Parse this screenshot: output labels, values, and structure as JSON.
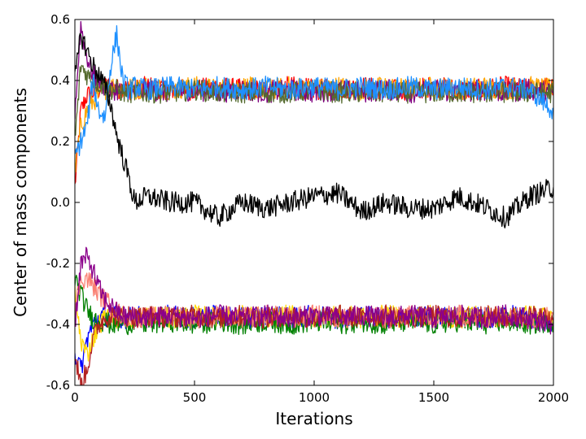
{
  "chart_data": {
    "type": "line",
    "title": "",
    "xlabel": "Iterations",
    "ylabel": "Center of mass components",
    "xlim": [
      0,
      2000
    ],
    "ylim": [
      -0.6,
      0.6
    ],
    "xticks": [
      0,
      500,
      1000,
      1500,
      2000
    ],
    "xtick_labels": [
      "0",
      "500",
      "1000",
      "1500",
      "2000"
    ],
    "yticks": [
      -0.6,
      -0.4,
      -0.2,
      0.0,
      0.2,
      0.4,
      0.6
    ],
    "ytick_labels": [
      "-0.6",
      "-0.4",
      "-0.2",
      "0.0",
      "0.2",
      "0.4",
      "0.6"
    ],
    "grid": false,
    "legend": "none",
    "x": [
      0,
      25,
      50,
      75,
      100,
      125,
      150,
      175,
      200,
      225,
      250,
      300,
      400,
      500,
      600,
      700,
      800,
      900,
      1000,
      1100,
      1200,
      1300,
      1400,
      1500,
      1600,
      1700,
      1800,
      1900,
      2000
    ],
    "series": [
      {
        "color": "#ff0000",
        "values": [
          0.05,
          0.3,
          0.35,
          0.36,
          0.37,
          0.38,
          0.38,
          0.37,
          0.38,
          0.37,
          0.37,
          0.38,
          0.37,
          0.37,
          0.38,
          0.37,
          0.37,
          0.38,
          0.37,
          0.37,
          0.38,
          0.37,
          0.37,
          0.38,
          0.37,
          0.37,
          0.38,
          0.37,
          0.38
        ]
      },
      {
        "color": "#ffa500",
        "values": [
          0.1,
          0.25,
          0.3,
          0.33,
          0.35,
          0.37,
          0.38,
          0.38,
          0.37,
          0.38,
          0.37,
          0.38,
          0.37,
          0.38,
          0.37,
          0.38,
          0.37,
          0.38,
          0.37,
          0.38,
          0.37,
          0.38,
          0.37,
          0.38,
          0.37,
          0.38,
          0.37,
          0.38,
          0.37
        ]
      },
      {
        "color": "#800080",
        "values": [
          0.3,
          0.58,
          0.48,
          0.42,
          0.4,
          0.38,
          0.37,
          0.37,
          0.36,
          0.37,
          0.36,
          0.37,
          0.36,
          0.37,
          0.36,
          0.37,
          0.36,
          0.37,
          0.36,
          0.37,
          0.36,
          0.37,
          0.36,
          0.37,
          0.36,
          0.37,
          0.36,
          0.37,
          0.36
        ]
      },
      {
        "color": "#556b2f",
        "values": [
          0.2,
          0.45,
          0.42,
          0.4,
          0.39,
          0.38,
          0.37,
          0.37,
          0.36,
          0.36,
          0.36,
          0.36,
          0.36,
          0.37,
          0.36,
          0.36,
          0.36,
          0.36,
          0.37,
          0.36,
          0.36,
          0.36,
          0.36,
          0.36,
          0.36,
          0.36,
          0.36,
          0.36,
          0.36
        ]
      },
      {
        "color": "#1e90ff",
        "values": [
          0.15,
          0.2,
          0.25,
          0.4,
          0.3,
          0.28,
          0.45,
          0.55,
          0.4,
          0.37,
          0.38,
          0.37,
          0.38,
          0.37,
          0.38,
          0.37,
          0.38,
          0.37,
          0.38,
          0.37,
          0.38,
          0.37,
          0.38,
          0.37,
          0.38,
          0.37,
          0.38,
          0.37,
          0.3
        ]
      },
      {
        "color": "#000000",
        "values": [
          0.4,
          0.55,
          0.5,
          0.45,
          0.42,
          0.38,
          0.32,
          0.22,
          0.15,
          0.08,
          0.0,
          0.02,
          0.0,
          0.0,
          -0.05,
          0.0,
          -0.02,
          0.0,
          0.02,
          0.03,
          -0.03,
          0.0,
          -0.02,
          -0.02,
          0.02,
          -0.01,
          -0.05,
          0.02,
          0.05
        ]
      },
      {
        "color": "#0000ff",
        "values": [
          -0.5,
          -0.55,
          -0.45,
          -0.4,
          -0.38,
          -0.37,
          -0.38,
          -0.37,
          -0.38,
          -0.38,
          -0.37,
          -0.38,
          -0.37,
          -0.38,
          -0.37,
          -0.38,
          -0.37,
          -0.38,
          -0.37,
          -0.38,
          -0.37,
          -0.38,
          -0.37,
          -0.38,
          -0.37,
          -0.38,
          -0.37,
          -0.38,
          -0.4
        ]
      },
      {
        "color": "#ffd700",
        "values": [
          -0.3,
          -0.45,
          -0.5,
          -0.45,
          -0.4,
          -0.38,
          -0.37,
          -0.38,
          -0.37,
          -0.38,
          -0.38,
          -0.37,
          -0.38,
          -0.37,
          -0.38,
          -0.37,
          -0.38,
          -0.37,
          -0.38,
          -0.37,
          -0.38,
          -0.37,
          -0.38,
          -0.37,
          -0.38,
          -0.37,
          -0.38,
          -0.37,
          -0.38
        ]
      },
      {
        "color": "#008000",
        "values": [
          -0.25,
          -0.3,
          -0.35,
          -0.38,
          -0.39,
          -0.39,
          -0.4,
          -0.4,
          -0.39,
          -0.4,
          -0.39,
          -0.4,
          -0.39,
          -0.4,
          -0.39,
          -0.4,
          -0.39,
          -0.4,
          -0.39,
          -0.4,
          -0.39,
          -0.4,
          -0.39,
          -0.4,
          -0.39,
          -0.4,
          -0.39,
          -0.4,
          -0.39
        ]
      },
      {
        "color": "#fa8072",
        "values": [
          -0.35,
          -0.25,
          -0.25,
          -0.27,
          -0.3,
          -0.32,
          -0.34,
          -0.36,
          -0.37,
          -0.38,
          -0.37,
          -0.38,
          -0.37,
          -0.38,
          -0.37,
          -0.38,
          -0.37,
          -0.38,
          -0.37,
          -0.38,
          -0.37,
          -0.38,
          -0.37,
          -0.38,
          -0.37,
          -0.38,
          -0.37,
          -0.38,
          -0.37
        ]
      },
      {
        "color": "#b22222",
        "values": [
          -0.5,
          -0.6,
          -0.55,
          -0.45,
          -0.4,
          -0.38,
          -0.37,
          -0.37,
          -0.38,
          -0.37,
          -0.38,
          -0.37,
          -0.38,
          -0.37,
          -0.38,
          -0.37,
          -0.38,
          -0.37,
          -0.38,
          -0.37,
          -0.38,
          -0.37,
          -0.38,
          -0.37,
          -0.38,
          -0.37,
          -0.38,
          -0.37,
          -0.38
        ]
      },
      {
        "color": "#8b008b",
        "values": [
          -0.4,
          -0.2,
          -0.18,
          -0.22,
          -0.28,
          -0.32,
          -0.34,
          -0.36,
          -0.37,
          -0.38,
          -0.37,
          -0.38,
          -0.37,
          -0.38,
          -0.37,
          -0.38,
          -0.37,
          -0.38,
          -0.37,
          -0.38,
          -0.37,
          -0.38,
          -0.37,
          -0.38,
          -0.37,
          -0.38,
          -0.37,
          -0.38,
          -0.4
        ]
      }
    ]
  }
}
